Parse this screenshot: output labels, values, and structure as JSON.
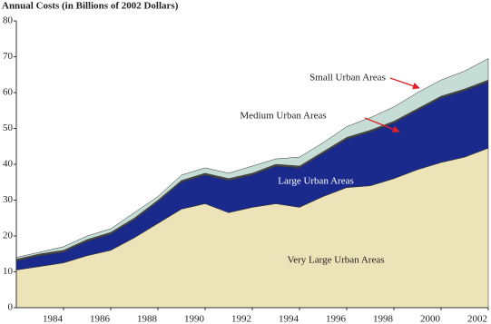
{
  "chart_data": {
    "type": "stacked-area",
    "title": "Annual  Costs  (in Billions of 2002 Dollars)",
    "x": [
      1982,
      1983,
      1984,
      1985,
      1986,
      1987,
      1988,
      1989,
      1990,
      1991,
      1992,
      1993,
      1994,
      1995,
      1996,
      1997,
      1998,
      1999,
      2000,
      2001,
      2002
    ],
    "xlim": [
      1982,
      2002
    ],
    "xticks": [
      1984,
      1986,
      1988,
      1990,
      1992,
      1994,
      1996,
      1998,
      2000,
      2002
    ],
    "ylim": [
      0,
      80
    ],
    "yticks": [
      0,
      10,
      20,
      30,
      40,
      50,
      60,
      70,
      80
    ],
    "series": [
      {
        "name": "Very Large Urban Areas",
        "color": "#ede3b8",
        "values": [
          10.5,
          11.5,
          12.5,
          14.5,
          16,
          19.5,
          23.5,
          27.5,
          29,
          26.5,
          28,
          29,
          28,
          31,
          33.5,
          34,
          36,
          38.5,
          40.5,
          42,
          44.5
        ]
      },
      {
        "name": "Large Urban Areas",
        "color": "#1a2a8c",
        "values": [
          2.5,
          3,
          3,
          4,
          4.5,
          5,
          6,
          7.5,
          8,
          9,
          9,
          10.5,
          11,
          12,
          13.5,
          15,
          15.5,
          16.5,
          18,
          18.5,
          18.5
        ]
      },
      {
        "name": "Medium Urban Areas",
        "color": "#4a4a4a",
        "values": [
          0.5,
          0.5,
          0.5,
          0.5,
          0.5,
          0.5,
          0.5,
          0.5,
          0.5,
          0.5,
          0.5,
          0.5,
          0.5,
          0.5,
          0.5,
          0.5,
          0.5,
          0.5,
          0.5,
          0.5,
          0.5
        ]
      },
      {
        "name": "Small Urban Areas",
        "color": "#c5ddd5",
        "values": [
          0.5,
          0.5,
          1,
          1,
          1,
          1.5,
          1,
          1.5,
          1.5,
          1.5,
          2,
          1.5,
          2.5,
          2.5,
          3,
          3.5,
          4,
          4.5,
          4.5,
          5,
          6
        ]
      }
    ]
  }
}
